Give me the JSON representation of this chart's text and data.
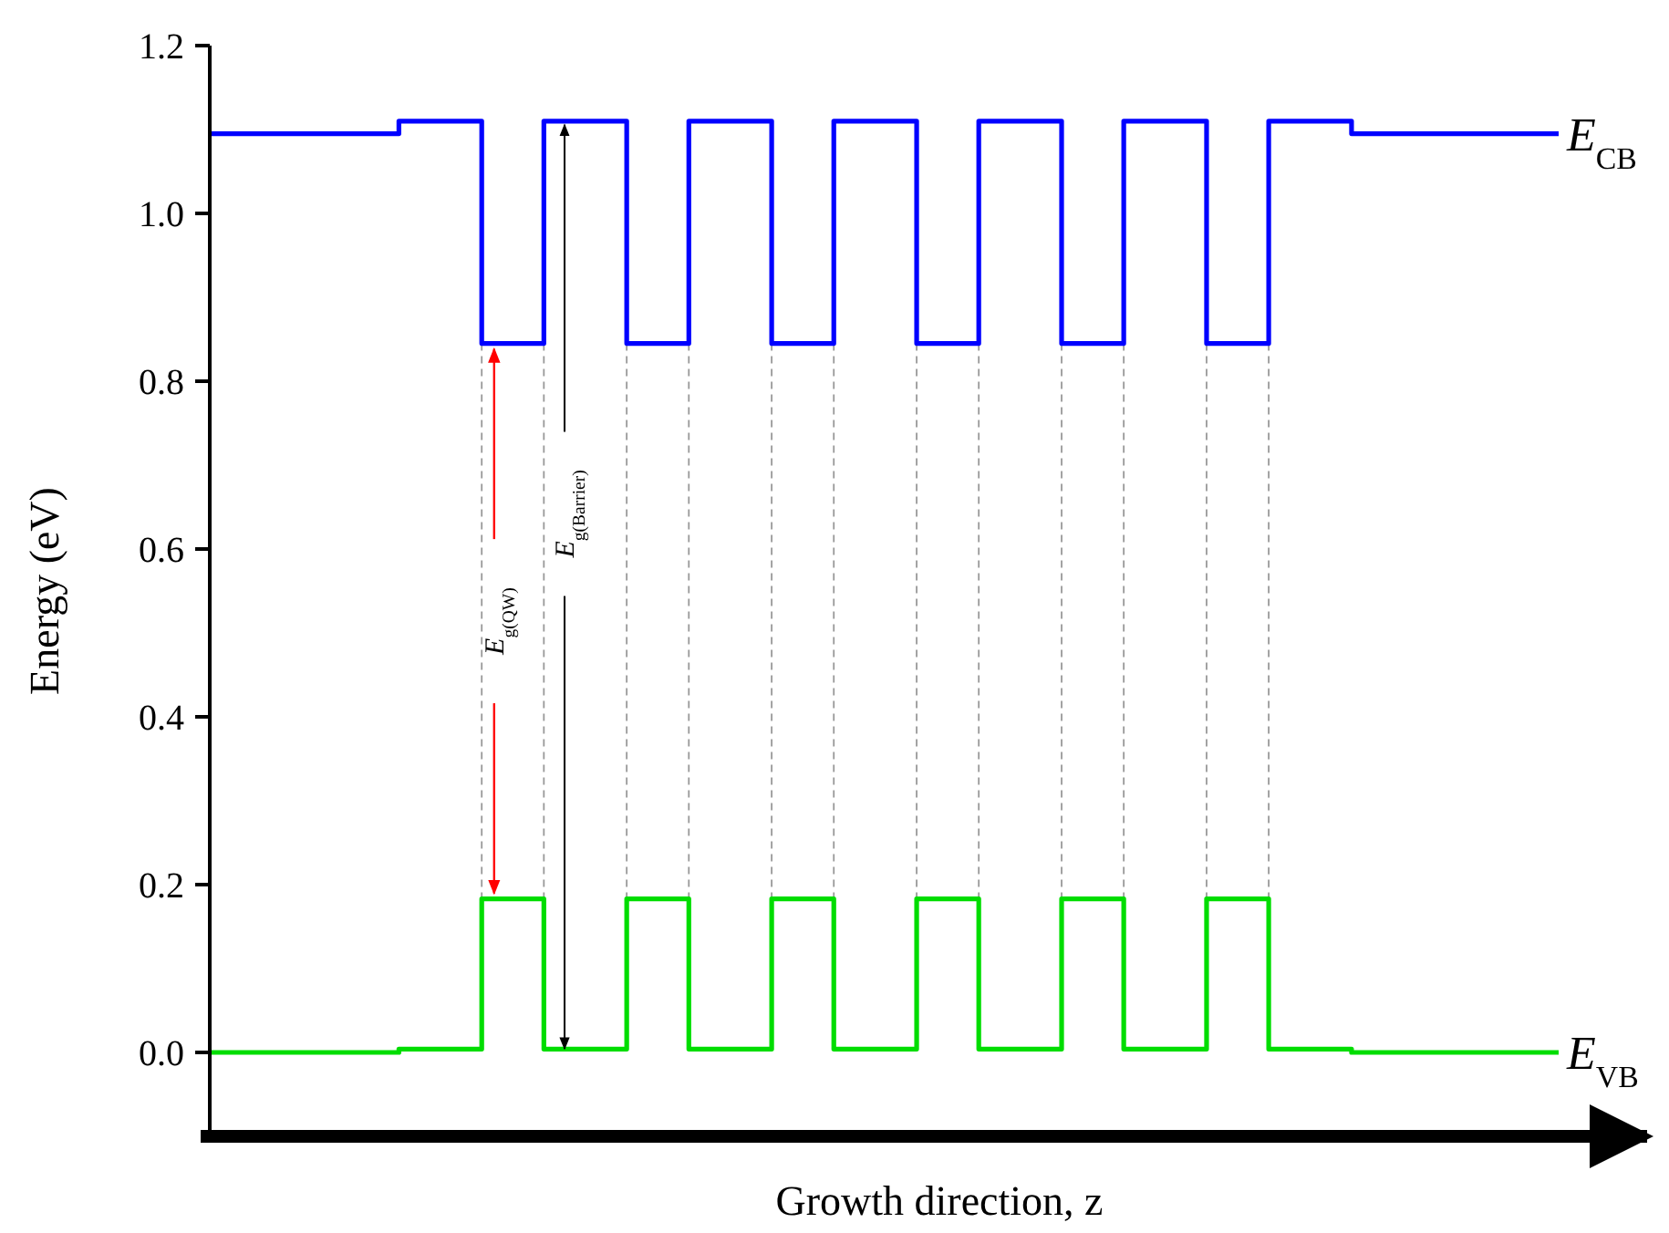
{
  "chart_data": {
    "type": "step",
    "xlabel": "Growth direction, z",
    "ylabel": "Energy (eV)",
    "categories": [
      null,
      null,
      null,
      null,
      null,
      null,
      null,
      null,
      null,
      null,
      null,
      null,
      null,
      null,
      null,
      null,
      null,
      null,
      null,
      null,
      null,
      null,
      null,
      null,
      null,
      null,
      null,
      null,
      null,
      null,
      null,
      null,
      null,
      null,
      null,
      null,
      null,
      null,
      null,
      null,
      null,
      null,
      null,
      null,
      null,
      null,
      null,
      null,
      null,
      null,
      null,
      null,
      null,
      null,
      null,
      null,
      null,
      null,
      null,
      null,
      null,
      null,
      null,
      null,
      null,
      null
    ],
    "series": [
      {
        "name": "E$_{CB}$",
        "color": "#0000ff",
        "values": [
          1.095,
          1.095,
          1.095,
          1.095,
          1.095,
          1.095,
          1.095,
          1.095,
          1.095,
          1.11,
          1.11,
          1.11,
          1.11,
          0.845,
          0.845,
          0.845,
          1.11,
          1.11,
          1.11,
          1.11,
          0.845,
          0.845,
          0.845,
          1.11,
          1.11,
          1.11,
          1.11,
          0.845,
          0.845,
          0.845,
          1.11,
          1.11,
          1.11,
          1.11,
          0.845,
          0.845,
          0.845,
          1.11,
          1.11,
          1.11,
          1.11,
          0.845,
          0.845,
          0.845,
          1.11,
          1.11,
          1.11,
          1.11,
          0.845,
          0.845,
          0.845,
          1.11,
          1.11,
          1.11,
          1.11,
          1.095,
          1.095,
          1.095,
          1.095,
          1.095,
          1.095,
          1.095,
          1.095,
          1.095,
          1.095,
          1.095
        ]
      },
      {
        "name": "E$_{VB}$",
        "color": "#00dd00",
        "values": [
          0,
          0,
          0,
          0,
          0,
          0,
          0,
          0,
          0,
          0.004,
          0.004,
          0.004,
          0.004,
          0.183,
          0.183,
          0.183,
          0.004,
          0.004,
          0.004,
          0.004,
          0.183,
          0.183,
          0.183,
          0.004,
          0.004,
          0.004,
          0.004,
          0.183,
          0.183,
          0.183,
          0.004,
          0.004,
          0.004,
          0.004,
          0.183,
          0.183,
          0.183,
          0.004,
          0.004,
          0.004,
          0.004,
          0.183,
          0.183,
          0.183,
          0.004,
          0.004,
          0.004,
          0.004,
          0.183,
          0.183,
          0.183,
          0.004,
          0.004,
          0.004,
          0.004,
          0,
          0,
          0,
          0,
          0,
          0,
          0,
          0,
          0,
          0,
          0
        ]
      }
    ],
    "annotations": [
      "E$_{g(QW)}$",
      "E$_{g(Barrier)}$"
    ],
    "ylim": [
      -0.1,
      1.2
    ],
    "yticks": [
      {
        "value": 0,
        "label": "0.0"
      },
      0.2,
      0.4,
      0.6,
      0.8,
      {
        "value": 1,
        "label": "1.0"
      },
      1.2
    ],
    "grid": false
  }
}
